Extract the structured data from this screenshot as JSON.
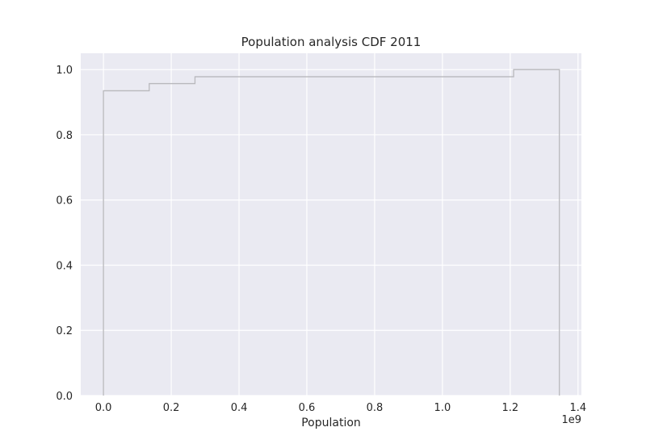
{
  "chart_data": {
    "type": "line",
    "subtype": "step-cdf",
    "title": "Population analysis CDF 2011",
    "xlabel": "Population",
    "ylabel": "",
    "x_offset_label": "1e9",
    "xlim": [
      -0.067,
      1.41
    ],
    "ylim": [
      0.0,
      1.05
    ],
    "x_ticks": [
      0.0,
      0.2,
      0.4,
      0.6,
      0.8,
      1.0,
      1.2,
      1.4
    ],
    "x_tick_labels": [
      "0.0",
      "0.2",
      "0.4",
      "0.6",
      "0.8",
      "1.0",
      "1.2",
      "1.4"
    ],
    "y_ticks": [
      0.0,
      0.2,
      0.4,
      0.6,
      0.8,
      1.0
    ],
    "y_tick_labels": [
      "0.0",
      "0.2",
      "0.4",
      "0.6",
      "0.8",
      "1.0"
    ],
    "grid": true,
    "background": "#eaeaf2",
    "grid_color": "#ffffff",
    "line_color": "#b8b8bc",
    "series": [
      {
        "x": [
          0.0,
          0.0,
          0.135,
          0.135,
          0.27,
          0.27,
          1.21,
          1.21,
          1.345,
          1.345
        ],
        "y": [
          0.0,
          0.935,
          0.935,
          0.957,
          0.957,
          0.978,
          0.978,
          1.0,
          1.0,
          0.0
        ]
      }
    ]
  }
}
